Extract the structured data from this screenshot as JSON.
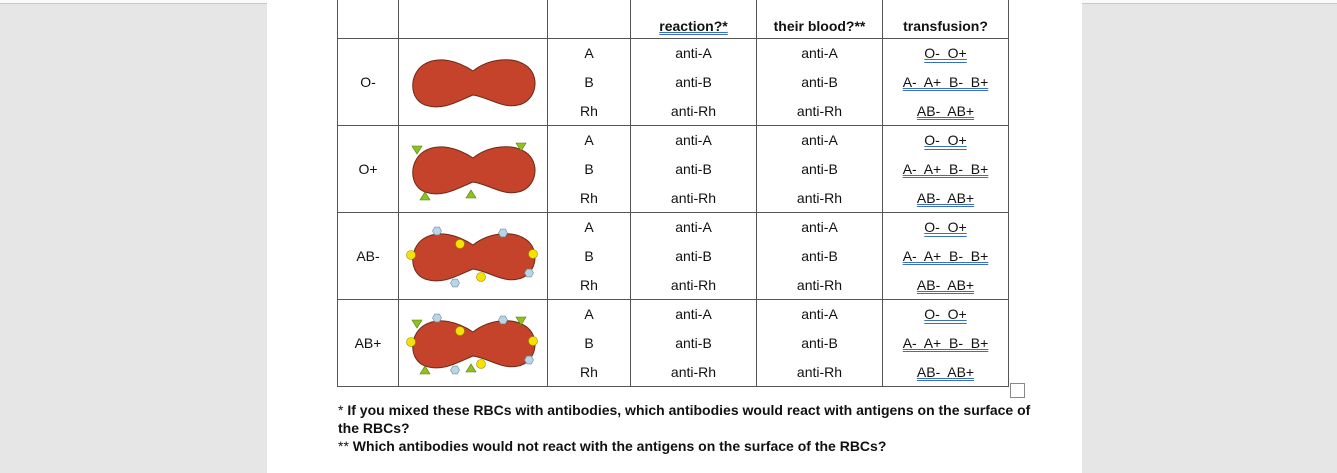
{
  "headers": {
    "reaction": "reaction?*",
    "their_blood": "their blood?**",
    "transfusion": "transfusion?"
  },
  "rows": [
    {
      "type": "O-",
      "antigens": [
        "A",
        "B",
        "Rh"
      ],
      "reacting": [
        "anti-A",
        "anti-B",
        "anti-Rh"
      ],
      "in_blood": [
        "anti-A",
        "anti-B",
        "anti-Rh"
      ],
      "donors": [
        "O-  O+",
        "A-  A+  B-  B+",
        "AB-  AB+"
      ],
      "markers": "none"
    },
    {
      "type": "O+",
      "antigens": [
        "A",
        "B",
        "Rh"
      ],
      "reacting": [
        "anti-A",
        "anti-B",
        "anti-Rh"
      ],
      "in_blood": [
        "anti-A",
        "anti-B",
        "anti-Rh"
      ],
      "donors": [
        "O-  O+",
        "A-  A+  B-  B+",
        "AB-  AB+"
      ],
      "markers": "triangles"
    },
    {
      "type": "AB-",
      "antigens": [
        "A",
        "B",
        "Rh"
      ],
      "reacting": [
        "anti-A",
        "anti-B",
        "anti-Rh"
      ],
      "in_blood": [
        "anti-A",
        "anti-B",
        "anti-Rh"
      ],
      "donors": [
        "O-  O+",
        "A-  A+  B-  B+",
        "AB-  AB+"
      ],
      "markers": "circles-hexagons"
    },
    {
      "type": "AB+",
      "antigens": [
        "A",
        "B",
        "Rh"
      ],
      "reacting": [
        "anti-A",
        "anti-B",
        "anti-Rh"
      ],
      "in_blood": [
        "anti-A",
        "anti-B",
        "anti-Rh"
      ],
      "donors": [
        "O-  O+",
        "A-  A+  B-  B+",
        "AB-  AB+"
      ],
      "markers": "all"
    }
  ],
  "footnotes": {
    "star": "*",
    "note1": "If you mixed these RBCs with antibodies, which antibodies would react with antigens on the surface of the RBCs?",
    "star2": "**",
    "note2": "Which antibodies would not react with the antigens on the surface of the RBCs?"
  },
  "colors": {
    "rbc_fill": "#c5432a",
    "rbc_stroke": "#6b2a18",
    "triangle": "#8dc21f",
    "circle": "#f5e200",
    "hexagon": "#b7d7e8"
  }
}
